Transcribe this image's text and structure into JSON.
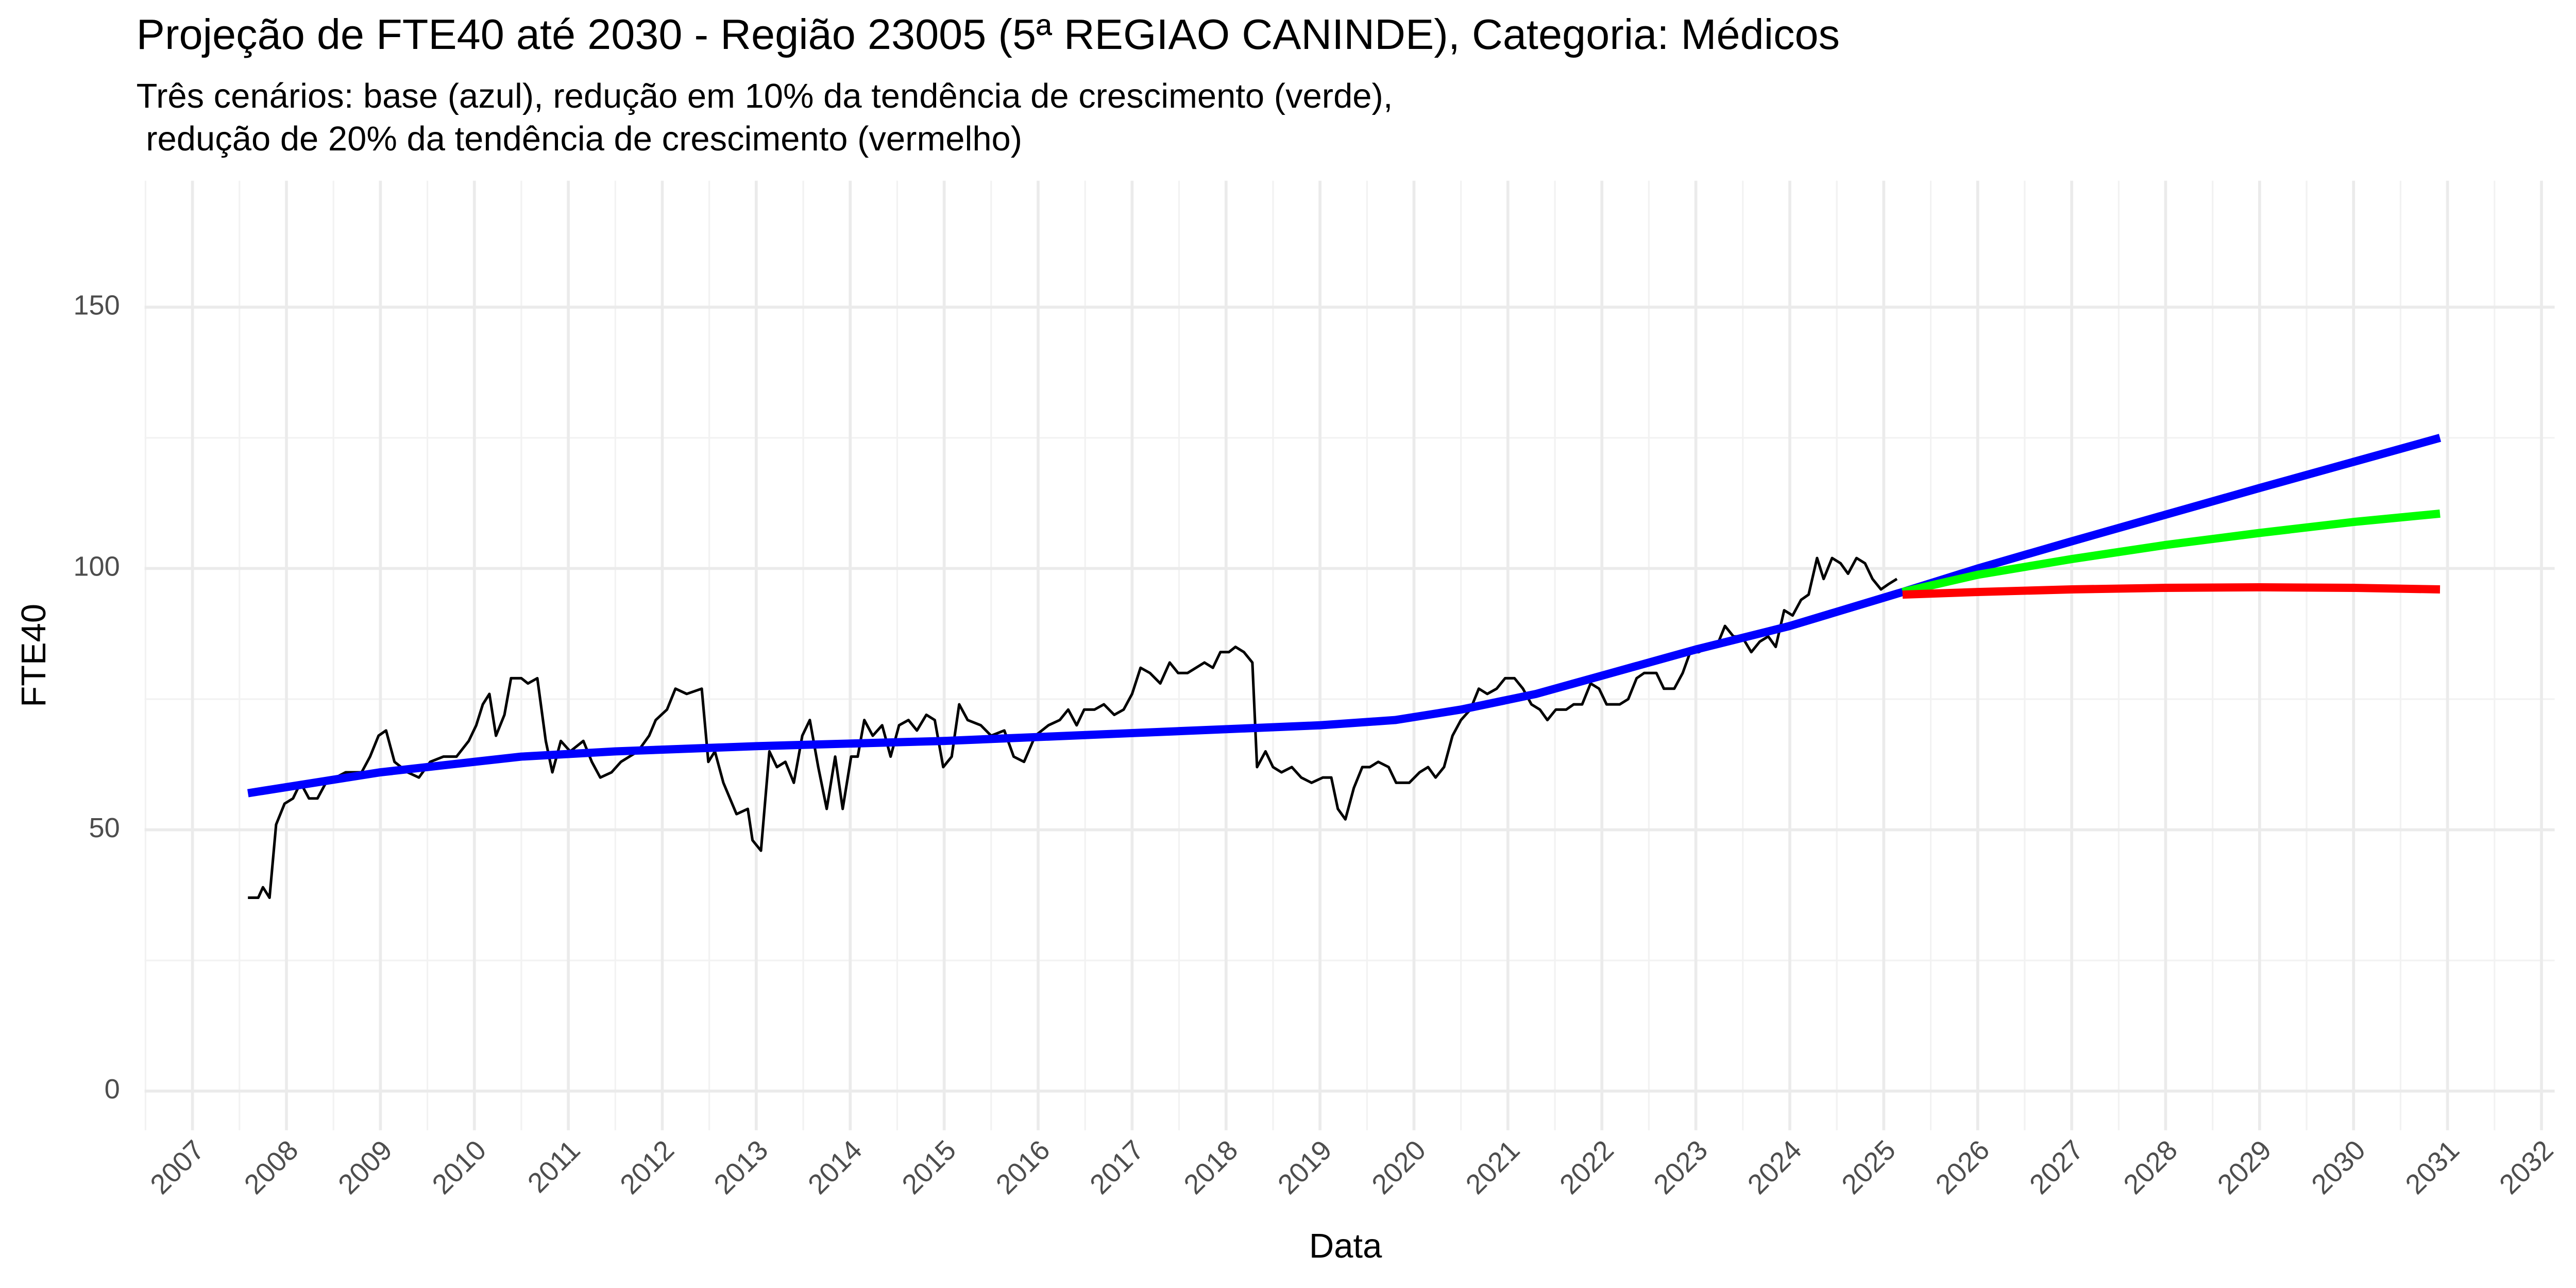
{
  "chart_data": {
    "type": "line",
    "title": "Projeção de FTE40 até 2030 - Região 23005 (5ª REGIAO CANINDE), Categoria: Médicos",
    "subtitle": [
      "Três cenários: base (azul), redução em 10% da tendência de crescimento (verde),",
      " redução de 20% da tendência de crescimento (vermelho)"
    ],
    "x_label": "Data",
    "y_label": "FTE40",
    "xlim": [
      2006.49,
      2032.14
    ],
    "ylim": [
      -7.5,
      174.2
    ],
    "xticks": [
      2007,
      2008,
      2009,
      2010,
      2011,
      2012,
      2013,
      2014,
      2015,
      2016,
      2017,
      2018,
      2019,
      2020,
      2021,
      2022,
      2023,
      2024,
      2025,
      2026,
      2027,
      2028,
      2029,
      2030,
      2031,
      2032
    ],
    "yticks": [
      0,
      50,
      100,
      150
    ],
    "grid": true,
    "series": [
      {
        "color": "#000000",
        "width": 1.6,
        "x": [
          2007.59,
          2007.7,
          2007.75,
          2007.82,
          2007.89,
          2007.98,
          2008.07,
          2008.15,
          2008.24,
          2008.33,
          2008.42,
          2008.63,
          2008.8,
          2008.89,
          2008.98,
          2009.06,
          2009.15,
          2009.29,
          2009.41,
          2009.53,
          2009.67,
          2009.81,
          2009.94,
          2010.02,
          2010.09,
          2010.16,
          2010.23,
          2010.32,
          2010.39,
          2010.5,
          2010.57,
          2010.67,
          2010.76,
          2010.83,
          2010.92,
          2011.02,
          2011.16,
          2011.25,
          2011.34,
          2011.46,
          2011.56,
          2011.74,
          2011.86,
          2011.93,
          2012.05,
          2012.14,
          2012.26,
          2012.42,
          2012.49,
          2012.56,
          2012.65,
          2012.79,
          2012.91,
          2012.96,
          2013.05,
          2013.14,
          2013.22,
          2013.31,
          2013.4,
          2013.49,
          2013.57,
          2013.66,
          2013.75,
          2013.84,
          2013.92,
          2014.01,
          2014.08,
          2014.15,
          2014.24,
          2014.34,
          2014.43,
          2014.52,
          2014.62,
          2014.71,
          2014.81,
          2014.9,
          2014.99,
          2015.08,
          2015.16,
          2015.25,
          2015.39,
          2015.5,
          2015.64,
          2015.74,
          2015.85,
          2015.97,
          2016.11,
          2016.23,
          2016.32,
          2016.41,
          2016.49,
          2016.6,
          2016.7,
          2016.81,
          2016.91,
          2017.0,
          2017.09,
          2017.19,
          2017.3,
          2017.4,
          2017.49,
          2017.59,
          2017.68,
          2017.77,
          2017.86,
          2017.94,
          2018.03,
          2018.1,
          2018.19,
          2018.28,
          2018.33,
          2018.42,
          2018.5,
          2018.59,
          2018.7,
          2018.8,
          2018.91,
          2019.03,
          2019.12,
          2019.19,
          2019.27,
          2019.36,
          2019.45,
          2019.53,
          2019.62,
          2019.73,
          2019.81,
          2019.95,
          2020.06,
          2020.15,
          2020.23,
          2020.32,
          2020.41,
          2020.5,
          2020.6,
          2020.69,
          2020.78,
          2020.88,
          2020.97,
          2021.07,
          2021.16,
          2021.25,
          2021.34,
          2021.42,
          2021.51,
          2021.62,
          2021.7,
          2021.79,
          2021.88,
          2021.97,
          2022.05,
          2022.19,
          2022.28,
          2022.37,
          2022.45,
          2022.58,
          2022.66,
          2022.77,
          2022.86,
          2022.94,
          2023.03,
          2023.14,
          2023.22,
          2023.31,
          2023.4,
          2023.49,
          2023.59,
          2023.68,
          2023.77,
          2023.85,
          2023.94,
          2024.03,
          2024.12,
          2024.2,
          2024.29,
          2024.36,
          2024.45,
          2024.54,
          2024.62,
          2024.71,
          2024.8,
          2024.88,
          2024.97,
          2025.05,
          2025.14
        ],
        "values": [
          37,
          37,
          39,
          37,
          51,
          55,
          56,
          59,
          56,
          56,
          59,
          61,
          61,
          64,
          68,
          69,
          63,
          61,
          60,
          63,
          64,
          64,
          67,
          70,
          74,
          76,
          68,
          72,
          79,
          79,
          78,
          79,
          67,
          61,
          67,
          65,
          67,
          63,
          60,
          61,
          63,
          65,
          68,
          71,
          73,
          77,
          76,
          77,
          63,
          65,
          59,
          53,
          54,
          48,
          46,
          65,
          62,
          63,
          59,
          68,
          71,
          62,
          54,
          64,
          54,
          64,
          64,
          71,
          68,
          70,
          64,
          70,
          71,
          69,
          72,
          71,
          62,
          64,
          74,
          71,
          70,
          68,
          69,
          64,
          63,
          68,
          70,
          71,
          73,
          70,
          73,
          73,
          74,
          72,
          73,
          76,
          81,
          80,
          78,
          82,
          80,
          80,
          81,
          82,
          81,
          84,
          84,
          85,
          84,
          82,
          62,
          65,
          62,
          61,
          62,
          60,
          59,
          60,
          60,
          54,
          52,
          58,
          62,
          62,
          63,
          62,
          59,
          59,
          61,
          62,
          60,
          62,
          68,
          71,
          73,
          77,
          76,
          77,
          79,
          79,
          77,
          74,
          73,
          71,
          73,
          73,
          74,
          74,
          78,
          77,
          74,
          74,
          75,
          79,
          80,
          80,
          77,
          77,
          80,
          84,
          84,
          85,
          85,
          89,
          87,
          87,
          84,
          86,
          87,
          85,
          92,
          91,
          94,
          95,
          102,
          98,
          102,
          101,
          99,
          102,
          101,
          98,
          96,
          97,
          98
        ]
      },
      {
        "color": "#0000ff",
        "width": 5,
        "x": [
          2007.59,
          2009,
          2010,
          2010.5,
          2011.5,
          2013,
          2015,
          2017,
          2019,
          2019.8,
          2020.5,
          2021.3,
          2022,
          2023,
          2024,
          2025.2,
          2026,
          2027,
          2028,
          2029,
          2030,
          2030.92
        ],
        "values": [
          57,
          61,
          63,
          64,
          65,
          66,
          67,
          68.5,
          70,
          71,
          73,
          76,
          79.5,
          84.5,
          89,
          95.5,
          100,
          105.2,
          110.3,
          115.4,
          120.4,
          125
        ]
      },
      {
        "color": "#00ff00",
        "width": 5,
        "x": [
          2025.2,
          2026,
          2027,
          2028,
          2029,
          2030,
          2030.92
        ],
        "values": [
          95.5,
          98.8,
          101.8,
          104.5,
          106.8,
          108.9,
          110.5
        ]
      },
      {
        "color": "#ff0000",
        "width": 5,
        "x": [
          2025.2,
          2026,
          2027,
          2028,
          2029,
          2030,
          2030.92
        ],
        "values": [
          95,
          95.5,
          96,
          96.3,
          96.4,
          96.3,
          96
        ]
      }
    ]
  }
}
